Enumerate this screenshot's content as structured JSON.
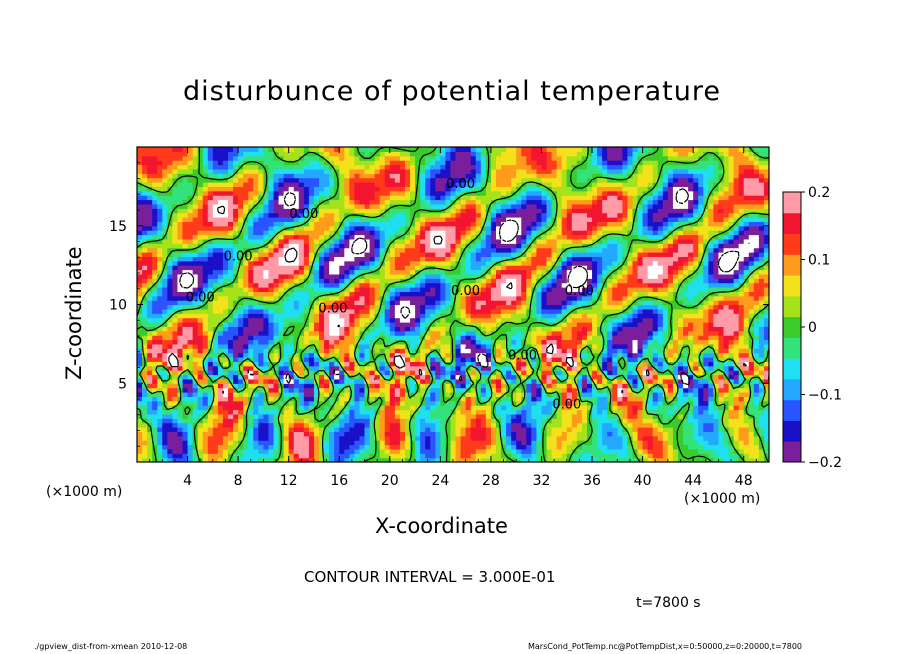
{
  "chart_data": {
    "type": "heatmap",
    "title": "disturbunce of potential temperature",
    "xlabel": "X-coordinate",
    "ylabel": "Z-coordinate",
    "x_unit_left": "(×1000 m)",
    "x_unit_right": "(×1000 m)",
    "xlim": [
      0,
      50
    ],
    "ylim": [
      0,
      20
    ],
    "x_ticks": [
      4,
      8,
      12,
      16,
      20,
      24,
      28,
      32,
      36,
      40,
      44,
      48
    ],
    "x_tick_labels": [
      "4",
      "8",
      "12",
      "16",
      "20",
      "24",
      "28",
      "32",
      "36",
      "40",
      "44",
      "48"
    ],
    "y_ticks": [
      5,
      10,
      15
    ],
    "y_tick_labels": [
      "5",
      "10",
      "15"
    ],
    "colorbar": {
      "range": [
        -0.2,
        0.2
      ],
      "ticks": [
        0.2,
        0.1,
        0,
        -0.1,
        -0.2
      ],
      "tick_labels": [
        "0.2",
        "0.1",
        "0",
        "−0.1",
        "−0.2"
      ],
      "colors": [
        "#7a1f9c",
        "#1a10c8",
        "#2a54ff",
        "#23a9ff",
        "#1fe0ef",
        "#33e27a",
        "#39cc2a",
        "#a5e21b",
        "#f3e11b",
        "#ff9c1b",
        "#ff3b1b",
        "#f21530",
        "#ff9aa6"
      ]
    },
    "contour_labels": [
      {
        "x": 25.6,
        "z": 17.4,
        "text": "0.00"
      },
      {
        "x": 13.2,
        "z": 15.5,
        "text": "0.00"
      },
      {
        "x": 8.0,
        "z": 12.8,
        "text": "0.00"
      },
      {
        "x": 5.0,
        "z": 10.2,
        "text": "0.00"
      },
      {
        "x": 15.5,
        "z": 9.5,
        "text": "0.00"
      },
      {
        "x": 26.0,
        "z": 10.6,
        "text": "0.00"
      },
      {
        "x": 35.0,
        "z": 10.6,
        "text": "0.00"
      },
      {
        "x": 30.5,
        "z": 6.5,
        "text": "0.00"
      },
      {
        "x": 34.0,
        "z": 3.4,
        "text": "0.00"
      }
    ],
    "contour_interval": "CONTOUR INTERVAL = 3.000E-01",
    "time": "t=7800 s"
  },
  "footer": {
    "left": "./gpview_dist-from-xmean  2010-12-08",
    "right": "MarsCond_PotTemp.nc@PotTempDist,x=0:50000,z=0:20000,t=7800"
  }
}
